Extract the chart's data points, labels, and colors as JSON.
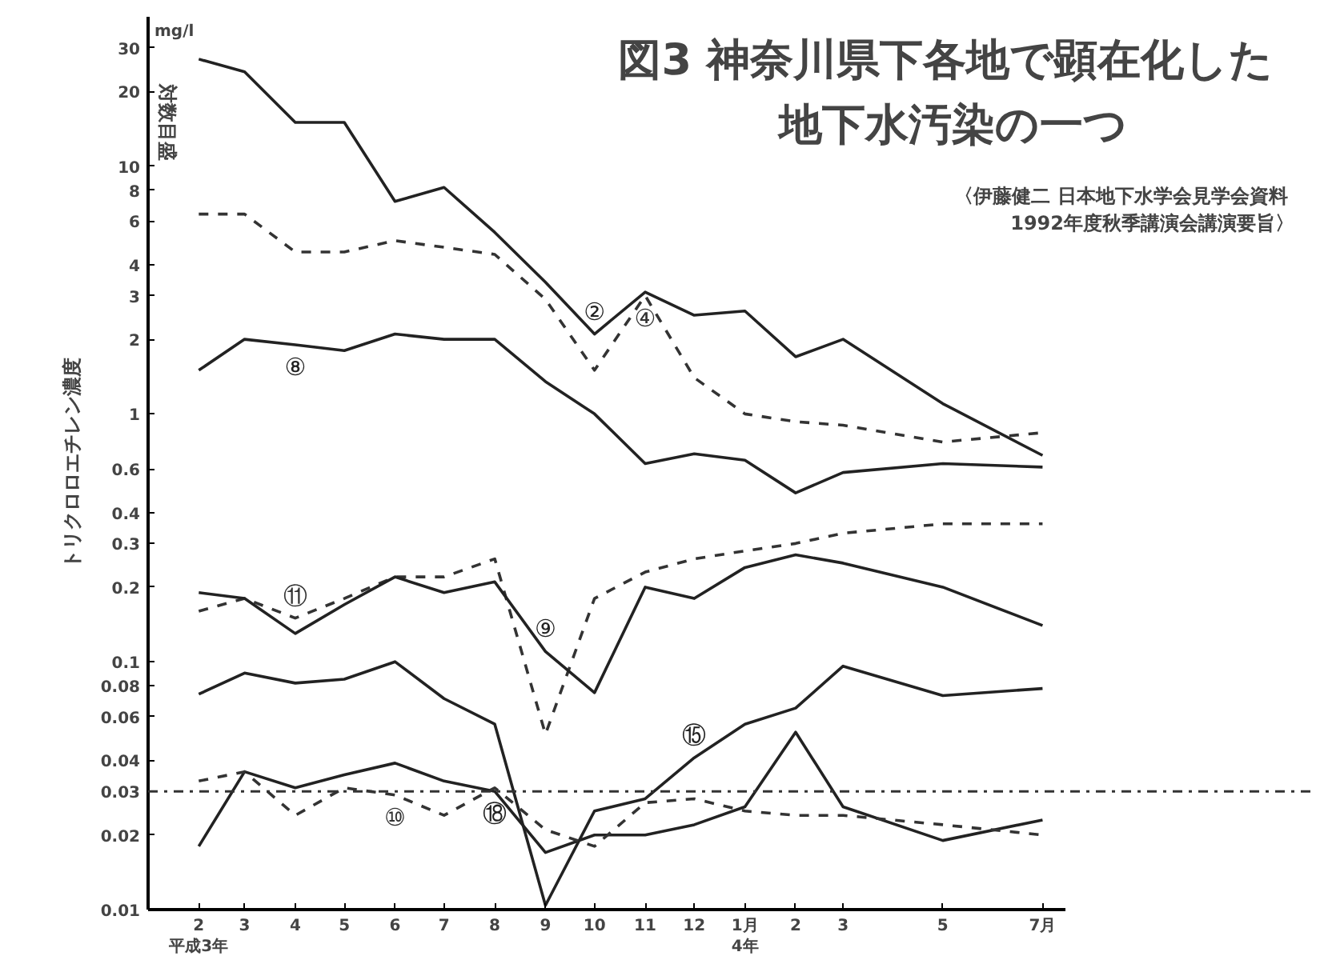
{
  "chart_data": {
    "type": "line",
    "title": "図3  神奈川県下各地で顕在化した地下水汚染の一つ",
    "subtitle": "〈伊藤健二  日本地下水学会見学会資料\n1992年度秋季講演会講演要旨〉",
    "ylabel": "トリクロロエチレン濃度",
    "annotations": [
      "mg/l",
      "対数目盛"
    ],
    "x": [
      "1991-02",
      "1991-03",
      "1991-04",
      "1991-05",
      "1991-06",
      "1991-07",
      "1991-08",
      "1991-09",
      "1991-10",
      "1991-11",
      "1991-12",
      "1992-01",
      "1992-02",
      "1992-03",
      "1992-05",
      "1992-07"
    ],
    "xlim": [
      "1991-01",
      "1992-07-15"
    ],
    "xticks": [
      {
        "value": "1991-02",
        "label": "2\n平成3年"
      },
      {
        "value": "1991-03",
        "label": "3"
      },
      {
        "value": "1991-04",
        "label": "4"
      },
      {
        "value": "1991-05",
        "label": "5"
      },
      {
        "value": "1991-06",
        "label": "6"
      },
      {
        "value": "1991-07",
        "label": "7"
      },
      {
        "value": "1991-08",
        "label": "8"
      },
      {
        "value": "1991-09",
        "label": "9"
      },
      {
        "value": "1991-10",
        "label": "10"
      },
      {
        "value": "1991-11",
        "label": "11"
      },
      {
        "value": "1991-12",
        "label": "12"
      },
      {
        "value": "1992-01",
        "label": "1月\n4年"
      },
      {
        "value": "1992-02",
        "label": "2"
      },
      {
        "value": "1992-03",
        "label": "3"
      },
      {
        "value": "1992-05",
        "label": "5"
      },
      {
        "value": "1992-07",
        "label": "7月"
      }
    ],
    "log": "y",
    "ylim": [
      0.01,
      40
    ],
    "yticks": [
      0.01,
      0.02,
      0.03,
      0.04,
      0.06,
      0.08,
      0.1,
      0.2,
      0.3,
      0.4,
      0.6,
      1,
      2,
      3,
      4,
      6,
      8,
      10,
      20,
      30
    ],
    "grid": false,
    "marker": "none",
    "series": [
      {
        "name": "②",
        "color": "#222222",
        "line_style": "solid",
        "values": [
          27,
          24,
          15,
          15,
          7.2,
          8.2,
          5.4,
          3.4,
          2.1,
          3.1,
          2.5,
          2.6,
          1.7,
          2.0,
          1.1,
          0.68
        ]
      },
      {
        "name": "④",
        "color": "#333333",
        "line_style": "dashed",
        "values": [
          6.4,
          6.4,
          4.5,
          4.5,
          5.0,
          4.7,
          4.4,
          2.9,
          1.5,
          3.0,
          1.4,
          1.0,
          0.93,
          0.9,
          0.77,
          0.84
        ]
      },
      {
        "name": "⑧",
        "color": "#222222",
        "line_style": "solid",
        "values": [
          1.5,
          2.0,
          1.9,
          1.8,
          2.1,
          2.0,
          2.0,
          1.35,
          1.0,
          0.63,
          0.69,
          0.65,
          0.48,
          0.58,
          0.63,
          0.61
        ]
      },
      {
        "name": "⑪",
        "color": "#333333",
        "line_style": "dashed",
        "values": [
          0.16,
          0.18,
          0.15,
          0.18,
          0.22,
          0.22,
          0.26,
          0.051,
          0.18,
          0.23,
          0.26,
          0.28,
          0.3,
          0.33,
          0.36,
          0.36
        ]
      },
      {
        "name": "⑨",
        "color": "#222222",
        "line_style": "solid",
        "values": [
          0.19,
          0.18,
          0.13,
          0.17,
          0.22,
          0.19,
          0.21,
          0.11,
          0.075,
          0.2,
          0.18,
          0.24,
          0.27,
          0.25,
          0.2,
          0.14
        ]
      },
      {
        "name": "⑮",
        "color": "#222222",
        "line_style": "solid",
        "values": [
          0.074,
          0.09,
          0.082,
          0.085,
          0.1,
          0.071,
          0.056,
          0.0104,
          0.025,
          0.028,
          0.041,
          0.056,
          0.065,
          0.096,
          0.073,
          0.078
        ]
      },
      {
        "name": "⑱",
        "color": "#222222",
        "line_style": "solid",
        "values": [
          0.018,
          0.036,
          0.031,
          0.035,
          0.039,
          0.033,
          0.03,
          0.017,
          0.02,
          0.02,
          0.022,
          0.026,
          0.052,
          0.026,
          0.019,
          0.023
        ]
      },
      {
        "name": "⑩",
        "color": "#333333",
        "line_style": "dashed",
        "values": [
          0.033,
          0.036,
          0.024,
          0.031,
          0.029,
          0.024,
          0.031,
          0.021,
          0.018,
          0.027,
          0.028,
          0.025,
          0.024,
          0.024,
          0.022,
          0.02
        ]
      }
    ],
    "ref_lines": [
      {
        "axis": "y",
        "value": 0.03,
        "label": null,
        "color": "#333333",
        "line_style": "dashdot"
      }
    ]
  }
}
